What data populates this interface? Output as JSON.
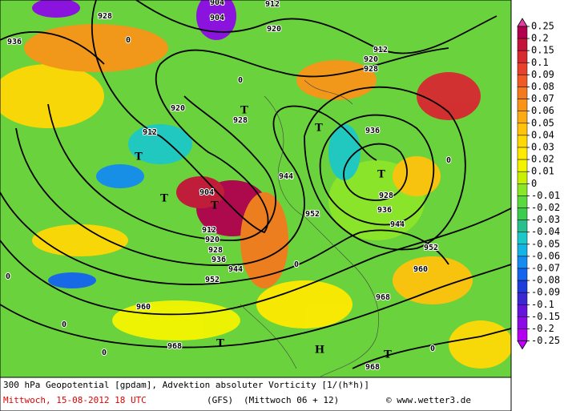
{
  "map": {
    "labels": [
      "904",
      "928",
      "912",
      "936",
      "920",
      "920",
      "928",
      "T",
      "912",
      "T",
      "T",
      "904",
      "T",
      "912",
      "920",
      "928",
      "936",
      "944",
      "952",
      "944",
      "952",
      "960",
      "968",
      "968",
      "936",
      "T",
      "928",
      "936",
      "944",
      "952",
      "960",
      "968",
      "T",
      "H",
      "T",
      "904",
      "912",
      "920",
      "928",
      "T",
      "0",
      "0",
      "0",
      "0",
      "0",
      "0",
      "0",
      "0"
    ]
  },
  "colorbar": {
    "ticks": [
      0.25,
      0.2,
      0.15,
      0.1,
      0.09,
      0.08,
      0.07,
      0.06,
      0.05,
      0.04,
      0.03,
      0.02,
      0.01,
      0,
      -0.01,
      -0.02,
      -0.03,
      -0.04,
      -0.05,
      -0.06,
      -0.07,
      -0.08,
      -0.09,
      -0.1,
      -0.15,
      -0.2,
      -0.25
    ],
    "colors": [
      "#b0004e",
      "#c4143a",
      "#d82830",
      "#e8402a",
      "#f05a24",
      "#f57a1e",
      "#f99418",
      "#fcac12",
      "#ffc30c",
      "#ffd806",
      "#ffea00",
      "#f4f400",
      "#c8f000",
      "#8ce628",
      "#5ada3c",
      "#3ccc50",
      "#28c08c",
      "#1ec8c8",
      "#14b4e6",
      "#148cf0",
      "#1464f0",
      "#1e3cdc",
      "#3c28d2",
      "#6414dc",
      "#8c0ae6",
      "#b400f0"
    ],
    "top_color": "#e040a0",
    "bottom_color": "#c000ff"
  },
  "footer": {
    "line1": "300 hPa Geopotential [gpdam], Advektion absoluter Vorticity [1/(h*h)]",
    "date": "Mittwoch, 15-08-2012  18 UTC",
    "model": "(GFS)",
    "run": "(Mittwoch 06 + 12)",
    "credit": "© www.wetter3.de"
  }
}
